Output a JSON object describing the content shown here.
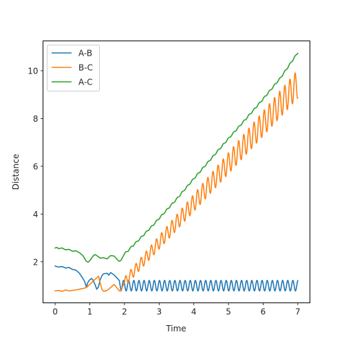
{
  "chart_data": {
    "type": "line",
    "title": "",
    "xlabel": "Time",
    "ylabel": "Distance",
    "xlim": [
      -0.35,
      7.35
    ],
    "ylim": [
      0.28,
      11.25
    ],
    "xticks": [
      0,
      1,
      2,
      3,
      4,
      5,
      6,
      7
    ],
    "yticks": [
      2,
      4,
      6,
      8,
      10
    ],
    "grid": false,
    "legend_position": "top-left",
    "series": [
      {
        "name": "A-B",
        "color": "#1f77b4",
        "points": [
          [
            0.0,
            1.82
          ],
          [
            0.1,
            1.78
          ],
          [
            0.2,
            1.8
          ],
          [
            0.3,
            1.74
          ],
          [
            0.4,
            1.76
          ],
          [
            0.5,
            1.68
          ],
          [
            0.6,
            1.65
          ],
          [
            0.7,
            1.52
          ],
          [
            0.8,
            1.3
          ],
          [
            0.85,
            1.18
          ],
          [
            0.9,
            0.95
          ],
          [
            0.95,
            1.15
          ],
          [
            1.0,
            1.25
          ],
          [
            1.05,
            1.3
          ],
          [
            1.1,
            1.22
          ],
          [
            1.15,
            1.05
          ],
          [
            1.2,
            0.85
          ],
          [
            1.25,
            0.95
          ],
          [
            1.3,
            1.25
          ],
          [
            1.35,
            1.42
          ],
          [
            1.4,
            1.5
          ],
          [
            1.5,
            1.52
          ],
          [
            1.55,
            1.44
          ],
          [
            1.6,
            1.55
          ],
          [
            1.7,
            1.45
          ],
          [
            1.8,
            1.3
          ],
          [
            1.85,
            1.22
          ],
          [
            1.9,
            0.95
          ]
        ],
        "oscillation": {
          "from": 1.9,
          "to": 7.0,
          "mean": 1.0,
          "amplitude": 0.22,
          "period": 0.148
        }
      },
      {
        "name": "B-C",
        "color": "#ff7f0e",
        "points": [
          [
            0.0,
            0.78
          ],
          [
            0.1,
            0.8
          ],
          [
            0.2,
            0.76
          ],
          [
            0.3,
            0.82
          ],
          [
            0.4,
            0.78
          ],
          [
            0.5,
            0.8
          ],
          [
            0.6,
            0.82
          ],
          [
            0.7,
            0.85
          ],
          [
            0.8,
            0.88
          ],
          [
            0.9,
            0.92
          ],
          [
            1.0,
            1.05
          ],
          [
            1.1,
            1.2
          ],
          [
            1.2,
            1.32
          ],
          [
            1.25,
            1.4
          ],
          [
            1.3,
            1.12
          ],
          [
            1.35,
            0.85
          ],
          [
            1.4,
            0.76
          ],
          [
            1.5,
            0.8
          ],
          [
            1.6,
            0.92
          ],
          [
            1.7,
            1.05
          ],
          [
            1.8,
            0.88
          ],
          [
            1.85,
            0.78
          ],
          [
            1.9,
            0.8
          ],
          [
            2.0,
            1.15
          ]
        ],
        "oscillation": {
          "from": 2.0,
          "to": 7.0,
          "trend_start": 1.15,
          "trend_end": 9.45,
          "amplitude": 0.4,
          "period": 0.148
        }
      },
      {
        "name": "A-C",
        "color": "#2ca02c",
        "points": [
          [
            0.0,
            2.58
          ],
          [
            0.05,
            2.6
          ],
          [
            0.1,
            2.55
          ],
          [
            0.2,
            2.58
          ],
          [
            0.3,
            2.5
          ],
          [
            0.4,
            2.52
          ],
          [
            0.5,
            2.44
          ],
          [
            0.6,
            2.46
          ],
          [
            0.7,
            2.38
          ],
          [
            0.8,
            2.26
          ],
          [
            0.9,
            2.02
          ],
          [
            0.95,
            1.98
          ],
          [
            1.0,
            2.05
          ],
          [
            1.1,
            2.25
          ],
          [
            1.15,
            2.3
          ],
          [
            1.2,
            2.26
          ],
          [
            1.3,
            2.15
          ],
          [
            1.4,
            2.17
          ],
          [
            1.5,
            2.12
          ],
          [
            1.6,
            2.26
          ],
          [
            1.7,
            2.24
          ],
          [
            1.8,
            2.08
          ],
          [
            1.85,
            2.02
          ],
          [
            1.9,
            2.06
          ],
          [
            2.0,
            2.34
          ],
          [
            2.1,
            2.46
          ],
          [
            2.2,
            2.62
          ],
          [
            2.4,
            2.9
          ],
          [
            2.6,
            3.2
          ],
          [
            2.8,
            3.5
          ],
          [
            3.0,
            3.82
          ],
          [
            3.5,
            4.62
          ],
          [
            4.0,
            5.48
          ],
          [
            4.5,
            6.32
          ],
          [
            5.0,
            7.16
          ],
          [
            5.5,
            7.98
          ],
          [
            6.0,
            8.82
          ],
          [
            6.5,
            9.7
          ],
          [
            7.0,
            10.76
          ]
        ],
        "ripple": {
          "from": 2.0,
          "to": 7.0,
          "amplitude": 0.03,
          "period": 0.148
        }
      }
    ]
  }
}
